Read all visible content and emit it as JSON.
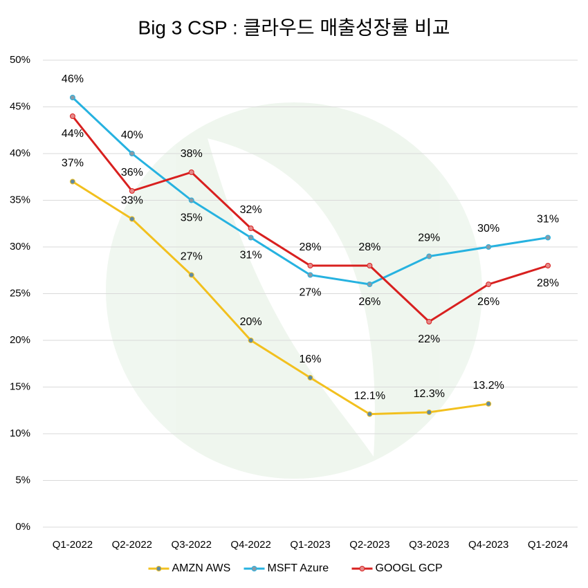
{
  "chart_data": {
    "type": "line",
    "title": "Big 3 CSP : 클라우드 매출성장률 비교",
    "categories": [
      "Q1-2022",
      "Q2-2022",
      "Q3-2022",
      "Q4-2022",
      "Q1-2023",
      "Q2-2023",
      "Q3-2023",
      "Q4-2023",
      "Q1-2024"
    ],
    "series": [
      {
        "name": "AMZN AWS",
        "color": "#f2c01e",
        "marker_color": "#5f8aa3",
        "values": [
          37,
          33,
          27,
          20,
          16,
          12.1,
          12.3,
          13.2,
          null
        ],
        "value_labels": [
          "37%",
          "33%",
          "27%",
          "20%",
          "16%",
          "12.1%",
          "12.3%",
          "13.2%",
          null
        ]
      },
      {
        "name": "MSFT Azure",
        "color": "#26b2e0",
        "marker_color": "#8a9aa6",
        "values": [
          46,
          40,
          35,
          31,
          27,
          26,
          29,
          30,
          31
        ],
        "value_labels": [
          "46%",
          "40%",
          "35%",
          "31%",
          "27%",
          "26%",
          "29%",
          "30%",
          "31%"
        ]
      },
      {
        "name": "GOOGL GCP",
        "color": "#d8201f",
        "marker_color": "#e58a8a",
        "values": [
          44,
          36,
          38,
          32,
          28,
          28,
          22,
          26,
          28
        ],
        "value_labels": [
          "44%",
          "36%",
          "38%",
          "32%",
          "28%",
          "28%",
          "22%",
          "26%",
          "28%"
        ]
      }
    ],
    "ylim": [
      0,
      50
    ],
    "yticks": [
      {
        "value": 0,
        "label": "0%"
      },
      {
        "value": 5,
        "label": "5%"
      },
      {
        "value": 10,
        "label": "10%"
      },
      {
        "value": 15,
        "label": "15%"
      },
      {
        "value": 20,
        "label": "20%"
      },
      {
        "value": 25,
        "label": "25%"
      },
      {
        "value": 30,
        "label": "30%"
      },
      {
        "value": 35,
        "label": "35%"
      },
      {
        "value": 40,
        "label": "40%"
      },
      {
        "value": 45,
        "label": "45%"
      },
      {
        "value": 50,
        "label": "50%"
      }
    ],
    "grid": true,
    "legend": "bottom"
  }
}
